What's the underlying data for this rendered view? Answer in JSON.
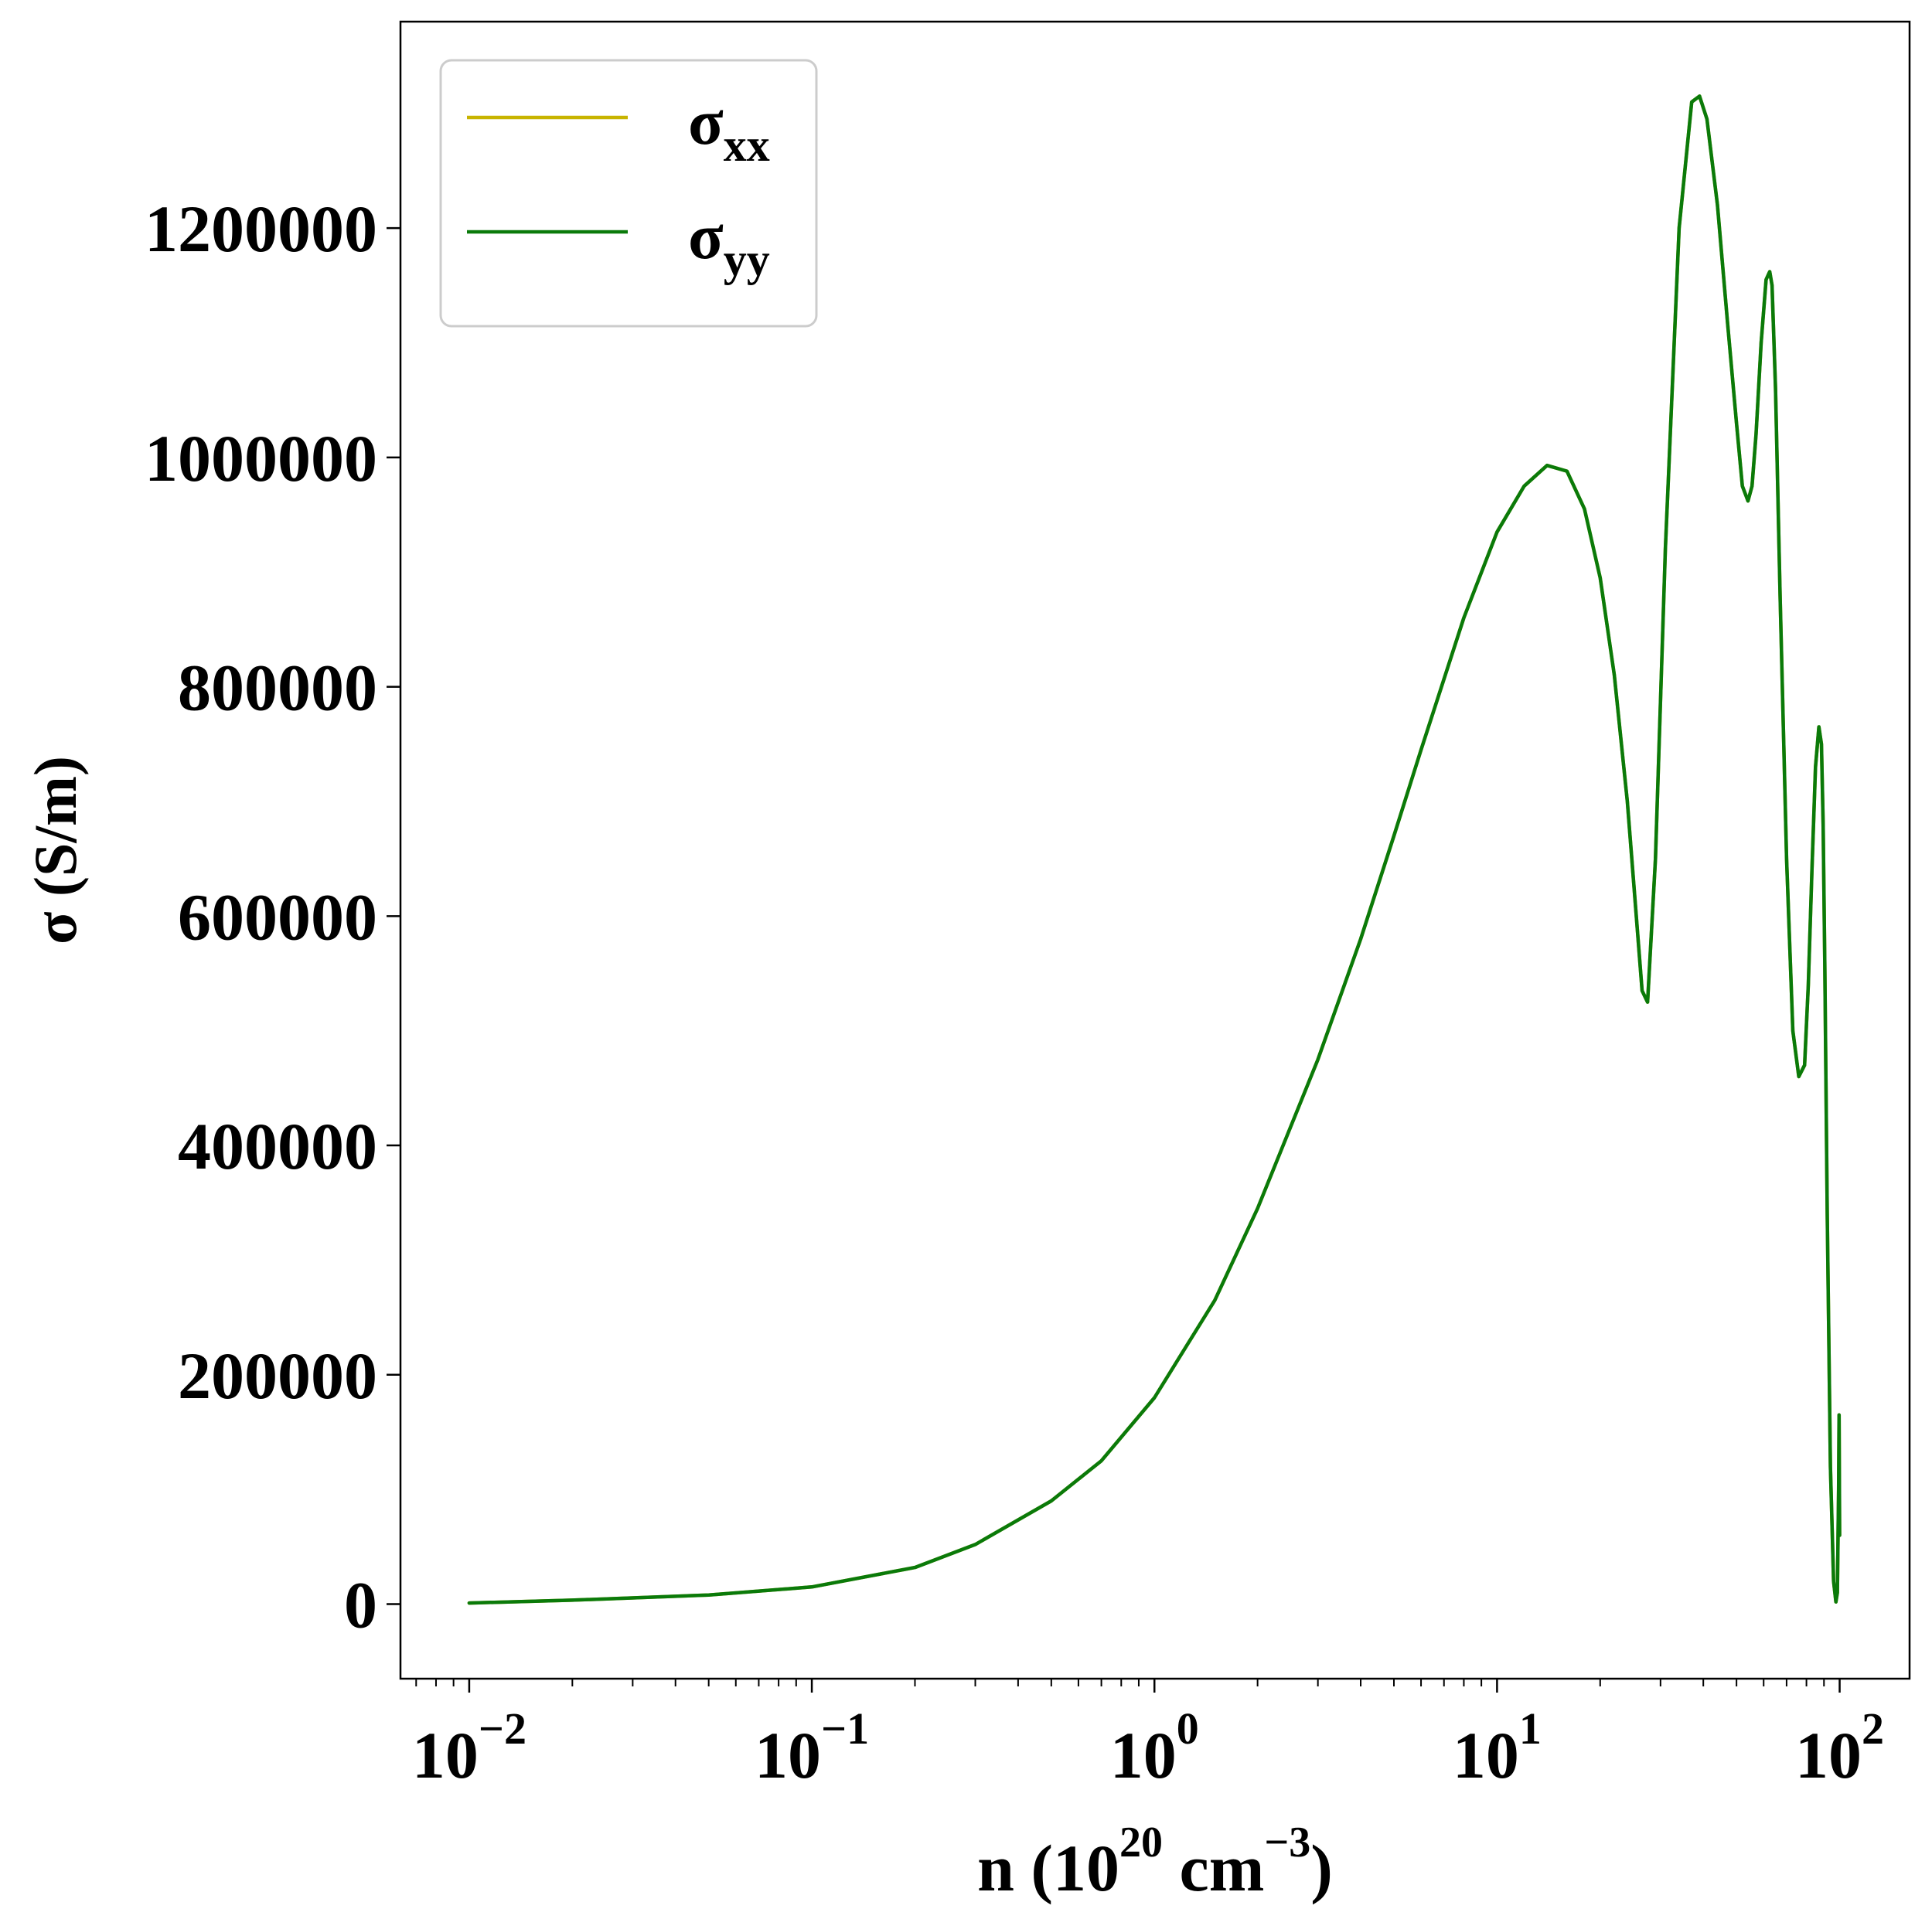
{
  "chart_data": {
    "type": "line",
    "title": "",
    "xlabel": {
      "base": "n (10",
      "sup1": "20",
      "mid": " cm",
      "sup2": "−3",
      "end": ")"
    },
    "ylabel": "σ (S/m)",
    "x_scale": "log",
    "xlim": [
      0.0063,
      160
    ],
    "ylim": [
      -65000,
      1380000
    ],
    "x_ticks": [
      {
        "value": 0.01,
        "base": "10",
        "exp": "−2"
      },
      {
        "value": 0.1,
        "base": "10",
        "exp": "−1"
      },
      {
        "value": 1,
        "base": "10",
        "exp": "0"
      },
      {
        "value": 10,
        "base": "10",
        "exp": "1"
      },
      {
        "value": 100,
        "base": "10",
        "exp": "2"
      }
    ],
    "y_ticks": [
      {
        "value": 0,
        "label": "0"
      },
      {
        "value": 200000,
        "label": "200000"
      },
      {
        "value": 400000,
        "label": "400000"
      },
      {
        "value": 600000,
        "label": "600000"
      },
      {
        "value": 800000,
        "label": "800000"
      },
      {
        "value": 1000000,
        "label": "1000000"
      },
      {
        "value": 1200000,
        "label": "1200000"
      }
    ],
    "grid": false,
    "legend_position": "top-left",
    "series": [
      {
        "name": "σ",
        "sub": "xx",
        "color": "#c8b400",
        "x": [
          0.01,
          0.02,
          0.05,
          0.1,
          0.2,
          0.3,
          0.5,
          0.7,
          1,
          1.5,
          2,
          3,
          4,
          5,
          6,
          8,
          10,
          12,
          14,
          16,
          18,
          20,
          22,
          24,
          25.5,
          26.5,
          27.5,
          29,
          31,
          34,
          37,
          39,
          41,
          44,
          47,
          50,
          52,
          54,
          55.5,
          57,
          59,
          61,
          62.5,
          63.5,
          65,
          67,
          70,
          73,
          76,
          79,
          81,
          83,
          85,
          87,
          88.5,
          89.5,
          90.5,
          92,
          94,
          96,
          97.5,
          98.5,
          99.3,
          99.6,
          100
        ],
        "values": [
          1000,
          3500,
          8000,
          15000,
          32000,
          52000,
          90000,
          125000,
          180000,
          265000,
          345000,
          475000,
          580000,
          670000,
          745000,
          860000,
          935000,
          975000,
          993000,
          988000,
          955000,
          895000,
          810000,
          700000,
          600000,
          535000,
          525000,
          650000,
          920000,
          1200000,
          1310000,
          1315000,
          1295000,
          1220000,
          1120000,
          1030000,
          975000,
          962000,
          975000,
          1020000,
          1100000,
          1155000,
          1162000,
          1150000,
          1060000,
          880000,
          650000,
          500000,
          460000,
          470000,
          540000,
          640000,
          730000,
          765000,
          750000,
          680000,
          560000,
          340000,
          120000,
          20000,
          2000,
          10000,
          100000,
          165000,
          60000
        ]
      },
      {
        "name": "σ",
        "sub": "yy",
        "color": "#0a7a0a",
        "x": [
          0.01,
          0.02,
          0.05,
          0.1,
          0.2,
          0.3,
          0.5,
          0.7,
          1,
          1.5,
          2,
          3,
          4,
          5,
          6,
          8,
          10,
          12,
          14,
          16,
          18,
          20,
          22,
          24,
          25.5,
          26.5,
          27.5,
          29,
          31,
          34,
          37,
          39,
          41,
          44,
          47,
          50,
          52,
          54,
          55.5,
          57,
          59,
          61,
          62.5,
          63.5,
          65,
          67,
          70,
          73,
          76,
          79,
          81,
          83,
          85,
          87,
          88.5,
          89.5,
          90.5,
          92,
          94,
          96,
          97.5,
          98.5,
          99.3,
          99.6,
          100
        ],
        "values": [
          1000,
          3500,
          8000,
          15000,
          32000,
          52000,
          90000,
          125000,
          180000,
          265000,
          345000,
          475000,
          580000,
          670000,
          745000,
          860000,
          935000,
          975000,
          993000,
          988000,
          955000,
          895000,
          810000,
          700000,
          600000,
          535000,
          525000,
          650000,
          920000,
          1200000,
          1310000,
          1315000,
          1295000,
          1220000,
          1120000,
          1030000,
          975000,
          962000,
          975000,
          1020000,
          1100000,
          1155000,
          1162000,
          1150000,
          1060000,
          880000,
          650000,
          500000,
          460000,
          470000,
          540000,
          640000,
          730000,
          765000,
          750000,
          680000,
          560000,
          340000,
          120000,
          20000,
          2000,
          10000,
          100000,
          165000,
          60000
        ]
      }
    ]
  }
}
